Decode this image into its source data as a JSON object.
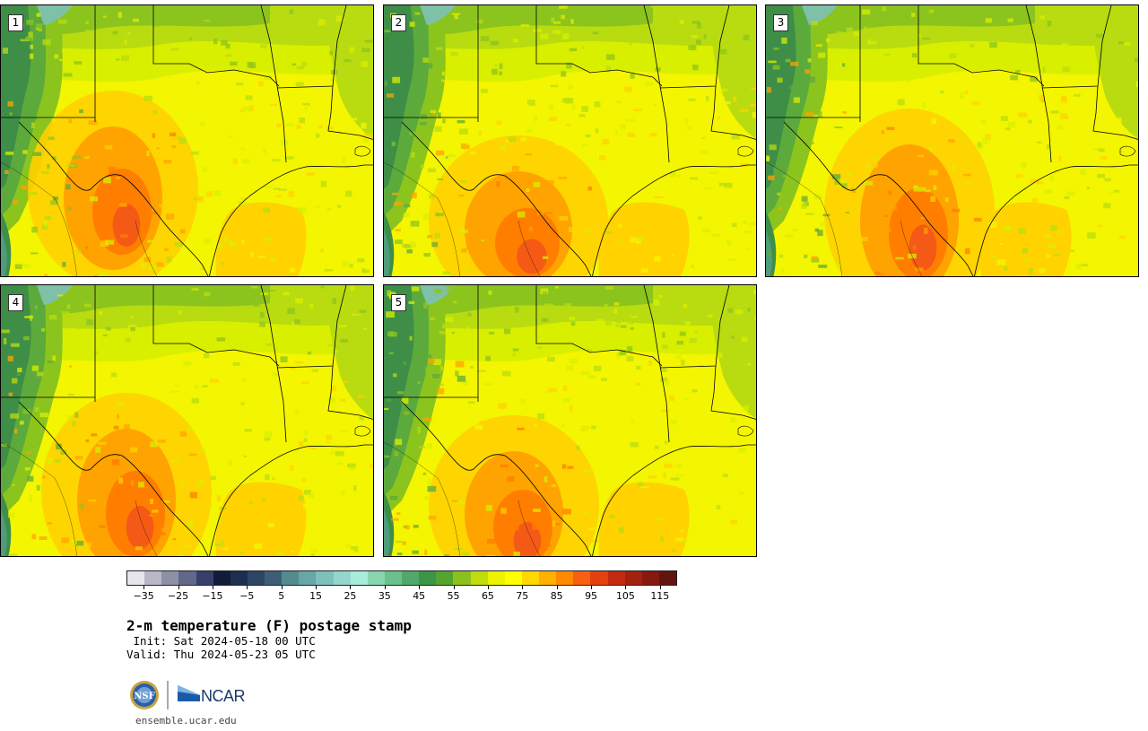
{
  "panels": [
    {
      "label": "1",
      "variant": 0
    },
    {
      "label": "2",
      "variant": 1
    },
    {
      "label": "3",
      "variant": 2
    },
    {
      "label": "4",
      "variant": 3
    },
    {
      "label": "5",
      "variant": 4
    }
  ],
  "colorbar": {
    "colors": [
      "#e6e6ec",
      "#b8b8c8",
      "#8e90a6",
      "#62688a",
      "#36406a",
      "#121c3a",
      "#1e2e50",
      "#2c4664",
      "#3e5e78",
      "#548a90",
      "#68a6a8",
      "#7ec0bc",
      "#94d6cc",
      "#a8ecdc",
      "#86d6b0",
      "#6cc08a",
      "#52a86a",
      "#3c9646",
      "#54a430",
      "#8cc01c",
      "#c0dc0a",
      "#ecf200",
      "#ffff00",
      "#ffd800",
      "#ffb000",
      "#ff8a00",
      "#f66010",
      "#e44010",
      "#c42a10",
      "#a42010",
      "#841a10",
      "#641410"
    ],
    "ticks": [
      "−35",
      "−25",
      "−15",
      "−5",
      "5",
      "15",
      "25",
      "35",
      "45",
      "55",
      "65",
      "75",
      "85",
      "95",
      "105",
      "115"
    ]
  },
  "title": "2-m temperature (F) postage stamp",
  "init": " Init: Sat 2024-05-18 00 UTC",
  "valid": "Valid: Thu 2024-05-23 05 UTC",
  "logos": {
    "nsf": "NSF",
    "ncar": "NCAR"
  },
  "url": "ensemble.ucar.edu"
}
